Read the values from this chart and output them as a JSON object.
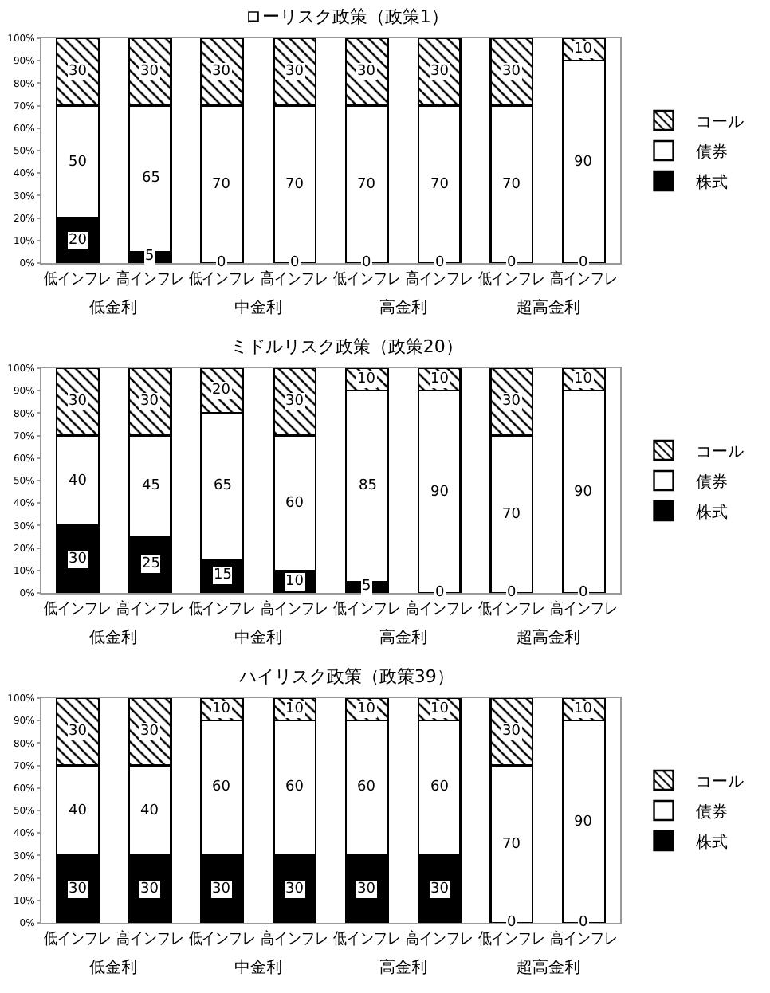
{
  "chart_data": [
    {
      "type": "bar",
      "title": "ローリスク政策（政策1）",
      "stacked": true,
      "data_labels": true,
      "grid": false,
      "legend": "right",
      "categories": [
        "低インフレ",
        "高インフレ",
        "低インフレ",
        "高インフレ",
        "低インフレ",
        "高インフレ",
        "低インフレ",
        "高インフレ"
      ],
      "annotations": [
        "低金利",
        "中金利",
        "高金利",
        "超高金利"
      ],
      "ylim": [
        0,
        100
      ],
      "yticks": [
        {
          "value": 0,
          "label": "0%"
        },
        {
          "value": 10,
          "label": "10%"
        },
        {
          "value": 20,
          "label": "20%"
        },
        {
          "value": 30,
          "label": "30%"
        },
        {
          "value": 40,
          "label": "40%"
        },
        {
          "value": 50,
          "label": "50%"
        },
        {
          "value": 60,
          "label": "60%"
        },
        {
          "value": 70,
          "label": "70%"
        },
        {
          "value": 80,
          "label": "80%"
        },
        {
          "value": 90,
          "label": "90%"
        },
        {
          "value": 100,
          "label": "100%"
        }
      ],
      "series": [
        {
          "name": "株式",
          "color": "#000000",
          "values": [
            20,
            5,
            0,
            0,
            0,
            0,
            0,
            0
          ]
        },
        {
          "name": "債券",
          "color": "#ffffff",
          "values": [
            50,
            65,
            70,
            70,
            70,
            70,
            70,
            90
          ]
        },
        {
          "name": "コール",
          "color": "#000000",
          "values": [
            30,
            30,
            30,
            30,
            30,
            30,
            30,
            10
          ]
        }
      ]
    },
    {
      "type": "bar",
      "title": "ミドルリスク政策（政策20）",
      "stacked": true,
      "data_labels": true,
      "grid": false,
      "legend": "right",
      "categories": [
        "低インフレ",
        "高インフレ",
        "低インフレ",
        "高インフレ",
        "低インフレ",
        "高インフレ",
        "低インフレ",
        "高インフレ"
      ],
      "annotations": [
        "低金利",
        "中金利",
        "高金利",
        "超高金利"
      ],
      "ylim": [
        0,
        100
      ],
      "yticks": [
        {
          "value": 0,
          "label": "0%"
        },
        {
          "value": 10,
          "label": "10%"
        },
        {
          "value": 20,
          "label": "20%"
        },
        {
          "value": 30,
          "label": "30%"
        },
        {
          "value": 40,
          "label": "40%"
        },
        {
          "value": 50,
          "label": "50%"
        },
        {
          "value": 60,
          "label": "60%"
        },
        {
          "value": 70,
          "label": "70%"
        },
        {
          "value": 80,
          "label": "80%"
        },
        {
          "value": 90,
          "label": "90%"
        },
        {
          "value": 100,
          "label": "100%"
        }
      ],
      "series": [
        {
          "name": "株式",
          "color": "#000000",
          "values": [
            30,
            25,
            15,
            10,
            5,
            0,
            0,
            0
          ]
        },
        {
          "name": "債券",
          "color": "#ffffff",
          "values": [
            40,
            45,
            65,
            60,
            85,
            90,
            70,
            90
          ]
        },
        {
          "name": "コール",
          "color": "#000000",
          "values": [
            30,
            30,
            20,
            30,
            10,
            10,
            30,
            10
          ]
        }
      ]
    },
    {
      "type": "bar",
      "title": "ハイリスク政策（政策39）",
      "stacked": true,
      "data_labels": true,
      "grid": false,
      "legend": "right",
      "categories": [
        "低インフレ",
        "高インフレ",
        "低インフレ",
        "高インフレ",
        "低インフレ",
        "高インフレ",
        "低インフレ",
        "高インフレ"
      ],
      "annotations": [
        "低金利",
        "中金利",
        "高金利",
        "超高金利"
      ],
      "ylim": [
        0,
        100
      ],
      "yticks": [
        {
          "value": 0,
          "label": "0%"
        },
        {
          "value": 10,
          "label": "10%"
        },
        {
          "value": 20,
          "label": "20%"
        },
        {
          "value": 30,
          "label": "30%"
        },
        {
          "value": 40,
          "label": "40%"
        },
        {
          "value": 50,
          "label": "50%"
        },
        {
          "value": 60,
          "label": "60%"
        },
        {
          "value": 70,
          "label": "70%"
        },
        {
          "value": 80,
          "label": "80%"
        },
        {
          "value": 90,
          "label": "90%"
        },
        {
          "value": 100,
          "label": "100%"
        }
      ],
      "series": [
        {
          "name": "株式",
          "color": "#000000",
          "values": [
            30,
            30,
            30,
            30,
            30,
            30,
            0,
            0
          ]
        },
        {
          "name": "債券",
          "color": "#ffffff",
          "values": [
            40,
            40,
            60,
            60,
            60,
            60,
            70,
            90
          ]
        },
        {
          "name": "コール",
          "color": "#000000",
          "values": [
            30,
            30,
            10,
            10,
            10,
            10,
            30,
            10
          ]
        }
      ]
    }
  ]
}
